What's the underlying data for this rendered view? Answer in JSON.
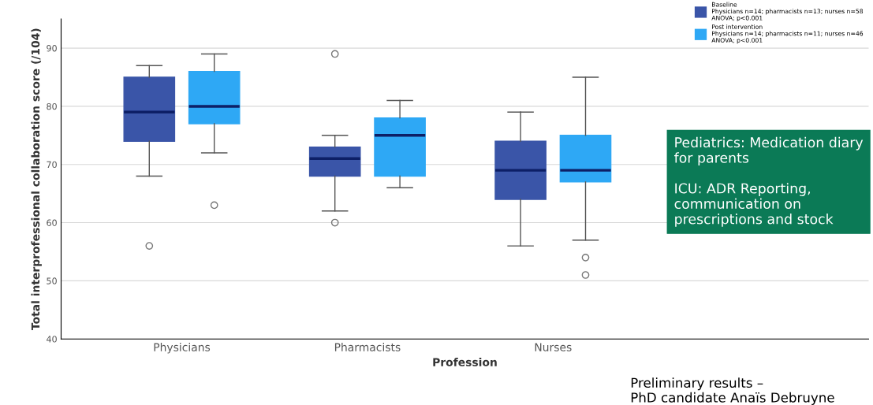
{
  "chart_data": {
    "type": "box",
    "xlabel": "Profession",
    "ylabel": "Total interprofessional collaboration score (/104)",
    "categories": [
      "Physicians",
      "Pharmacists",
      "Nurses"
    ],
    "series": [
      {
        "name": "Baseline\nPhysicians n=14; pharmacists n=13; nurses n=58\nANOVA; p<0.001",
        "color": "#3a55a8",
        "boxes": [
          {
            "low": 68,
            "q1": 74,
            "median": 79,
            "q3": 85,
            "high": 87,
            "outliers": [
              56
            ]
          },
          {
            "low": 62,
            "q1": 68,
            "median": 71,
            "q3": 73,
            "high": 75,
            "outliers": [
              60,
              89
            ]
          },
          {
            "low": 56,
            "q1": 64,
            "median": 69,
            "q3": 74,
            "high": 79
          }
        ]
      },
      {
        "name": "Post intervention\nPhysicians n=14; pharmacists n=11; nurses n=46\nANOVA; p<0.001",
        "color": "#2ea8f5",
        "boxes": [
          {
            "low": 72,
            "q1": 77,
            "median": 80,
            "q3": 86,
            "high": 89,
            "outliers": [
              63
            ]
          },
          {
            "low": 66,
            "q1": 68,
            "median": 75,
            "q3": 78,
            "high": 81
          },
          {
            "low": 57,
            "q1": 67,
            "median": 69,
            "q3": 75,
            "high": 85,
            "outliers": [
              54,
              51
            ]
          }
        ]
      }
    ],
    "ylim": [
      40,
      95
    ],
    "yticks": [
      40,
      50,
      60,
      70,
      80,
      90
    ],
    "grid": "y",
    "legend": "top right",
    "annotations": [
      "Pediatrics: Medication diary for parents\n\nICU: ADR Reporting, communication on prescriptions and stock",
      "Preliminary results –\nPhD candidate Anaïs Debruyne"
    ]
  }
}
